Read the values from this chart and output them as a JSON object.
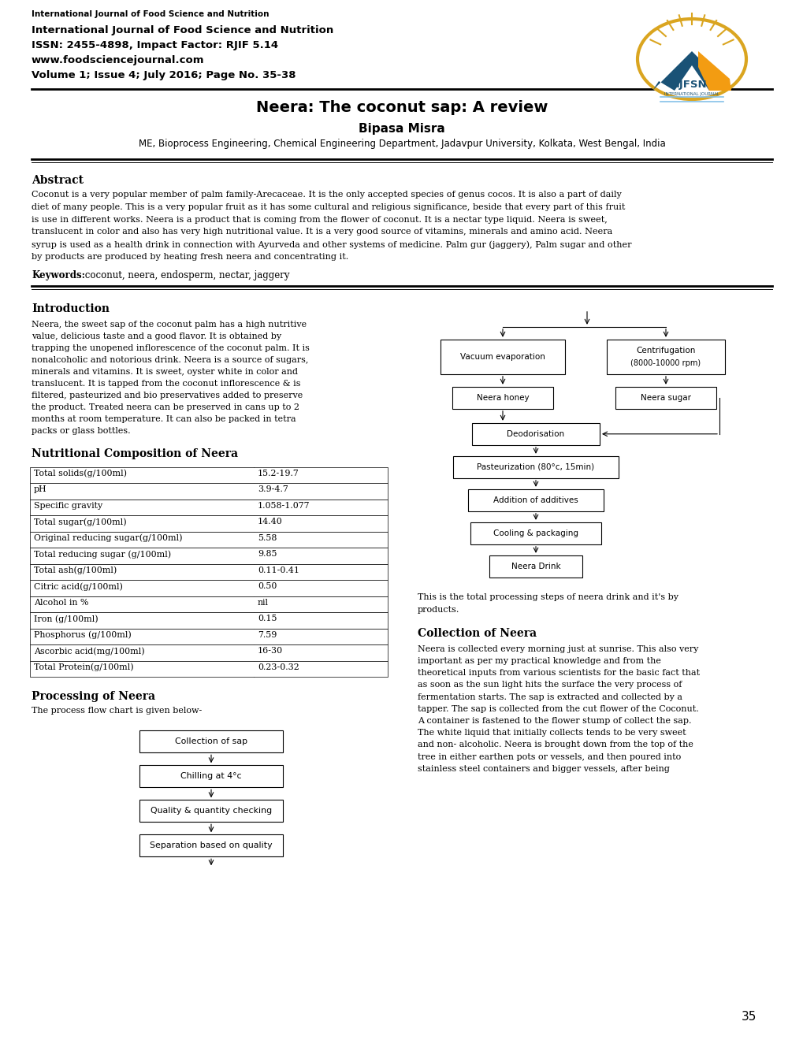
{
  "page_width": 10.2,
  "page_height": 13.2,
  "bg_color": "#ffffff",
  "header_journal_small": "International Journal of Food Science and Nutrition",
  "header_line1": "International Journal of Food Science and Nutrition",
  "header_line2": "ISSN: 2455-4898, Impact Factor: RJIF 5.14",
  "header_line3": "www.foodsciencejournal.com",
  "header_line4": "Volume 1; Issue 4; July 2016; Page No. 35-38",
  "title": "Neera: The coconut sap: A review",
  "author": "Bipasa Misra",
  "affiliation": "ME, Bioprocess Engineering, Chemical Engineering Department, Jadavpur University, Kolkata, West Bengal, India",
  "abstract_heading": "Abstract",
  "abstract_lines": [
    "Coconut is a very popular member of palm family-Arecaceae. It is the only accepted species of genus cocos. It is also a part of daily",
    "diet of many people. This is a very popular fruit as it has some cultural and religious significance, beside that every part of this fruit",
    "is use in different works. Neera is a product that is coming from the flower of coconut. It is a nectar type liquid. Neera is sweet,",
    "translucent in color and also has very high nutritional value. It is a very good source of vitamins, minerals and amino acid. Neera",
    "syrup is used as a health drink in connection with Ayurveda and other systems of medicine. Palm gur (jaggery), Palm sugar and other",
    "by products are produced by heating fresh neera and concentrating it."
  ],
  "keywords_bold": "Keywords:",
  "keywords_text": " coconut, neera, endosperm, nectar, jaggery",
  "intro_heading": "Introduction",
  "intro_lines": [
    "Neera, the sweet sap of the coconut palm has a high nutritive",
    "value, delicious taste and a good flavor. It is obtained by",
    "trapping the unopened inflorescence of the coconut palm. It is",
    "nonalcoholic and notorious drink. Neera is a source of sugars,",
    "minerals and vitamins. It is sweet, oyster white in color and",
    "translucent. It is tapped from the coconut inflorescence & is",
    "filtered, pasteurized and bio preservatives added to preserve",
    "the product. Treated neera can be preserved in cans up to 2",
    "months at room temperature. It can also be packed in tetra",
    "packs or glass bottles."
  ],
  "nutr_heading": "Nutritional Composition of Neera",
  "table_data": [
    [
      "Total solids(g/100ml)",
      "15.2-19.7"
    ],
    [
      "pH",
      "3.9-4.7"
    ],
    [
      "Specific gravity",
      "1.058-1.077"
    ],
    [
      "Total sugar(g/100ml)",
      "14.40"
    ],
    [
      "Original reducing sugar(g/100ml)",
      "5.58"
    ],
    [
      "Total reducing sugar (g/100ml)",
      "9.85"
    ],
    [
      "Total ash(g/100ml)",
      "0.11-0.41"
    ],
    [
      "Citric acid(g/100ml)",
      "0.50"
    ],
    [
      "Alcohol in %",
      "nil"
    ],
    [
      "Iron (g/100ml)",
      "0.15"
    ],
    [
      "Phosphorus (g/100ml)",
      "7.59"
    ],
    [
      "Ascorbic acid(mg/100ml)",
      "16-30"
    ],
    [
      "Total Protein(g/100ml)",
      "0.23-0.32"
    ]
  ],
  "processing_heading": "Processing of Neera",
  "processing_intro": "The process flow chart is given below-",
  "left_flow": [
    "Collection of sap",
    "Chilling at 4°c",
    "Quality & quantity checking",
    "Separation based on quality"
  ],
  "right_caption_lines": [
    "This is the total processing steps of neera drink and it's by",
    "products."
  ],
  "collection_heading": "Collection of Neera",
  "collection_lines": [
    "Neera is collected every morning just at sunrise. This also very",
    "important as per my practical knowledge and from the",
    "theoretical inputs from various scientists for the basic fact that",
    "as soon as the sun light hits the surface the very process of",
    "fermentation starts. The sap is extracted and collected by a",
    "tapper. The sap is collected from the cut flower of the Coconut.",
    "A container is fastened to the flower stump of collect the sap.",
    "The white liquid that initially collects tends to be very sweet",
    "and non- alcoholic. Neera is brought down from the top of the",
    "tree in either earthen pots or vessels, and then poured into",
    "stainless steel containers and bigger vessels, after being"
  ],
  "page_number": "35"
}
